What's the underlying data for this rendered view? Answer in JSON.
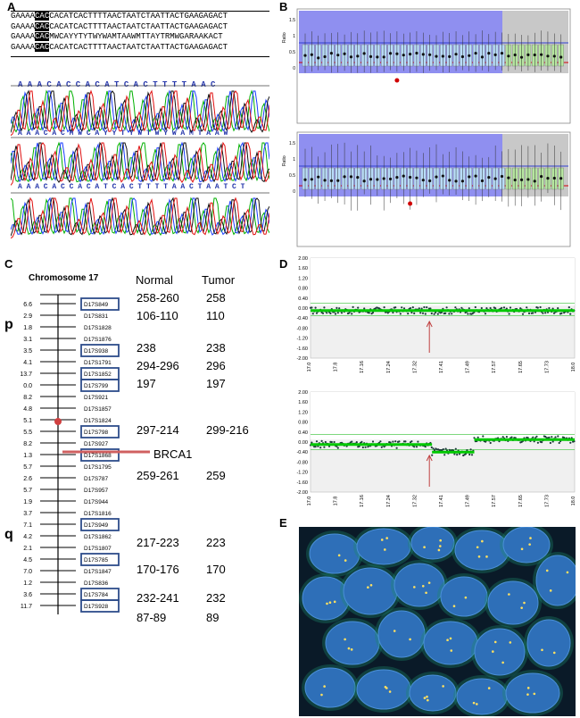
{
  "panels": {
    "A": {
      "label": "A",
      "sequence_lines": [
        {
          "prefix": "GAAAA",
          "box": "CAC",
          "rest": "CACATCACTTTTAACTAATCTAATTACTGAAGAGACT"
        },
        {
          "prefix": "GAAAA",
          "box": "CAC",
          "rest": "CACATCACTTTTAACTAATCTAATTACTGAAGAGACT"
        },
        {
          "prefix": "GAAAA",
          "box": "CAC",
          "rest": "MWCAYYTYTWYWAMTAAWMTTAYTRMWGARAAKACT"
        },
        {
          "prefix": "GAAAA",
          "box": "CAC",
          "rest": "CACATCACTTTTAACTAATCTAATTACTGAAGAGACT"
        }
      ],
      "trace1_bases": "A A A C A C C A C A T C A C T T T T A A C",
      "trace2_bases": "A A A C A C M W C A Y Y T Y W T W Y W A M T A A W",
      "trace3_bases": "A A A C A C C A C A T C A C T T T T A A C T A A T C T"
    },
    "B": {
      "label": "B",
      "axis_label": "Ratio",
      "top_ticks": [
        "1.5",
        "1",
        "0.5",
        "0"
      ],
      "bottom_ticks": [
        "1.5",
        "1",
        "0.5",
        "0"
      ]
    },
    "C": {
      "label": "C",
      "chromosome_title": "Chromosome 17",
      "col_normal": "Normal",
      "col_tumor": "Tumor",
      "arm_p": "p",
      "arm_q": "q",
      "gene_label": "BRCA1",
      "distances": [
        "6.6",
        "2.9",
        "1.8",
        "3.1",
        "3.5",
        "4.1",
        "13.7",
        "0.0",
        "8.2",
        "4.8",
        "5.1",
        "5.5",
        "8.2",
        "1.3",
        "5.7",
        "2.6",
        "5.7",
        "1.9",
        "3.7",
        "7.1",
        "4.2",
        "2.1",
        "4.5",
        "7.0",
        "1.2",
        "3.6",
        "11.7"
      ],
      "markers": [
        "D17S849",
        "D17S831",
        "D17S1828",
        "D17S1876",
        "D17S938",
        "D17S1791",
        "D17S1852",
        "D17S799",
        "D17S921",
        "D17S1857",
        "D17S1824",
        "D17S798",
        "D17S927",
        "D17S1868",
        "D17S1795",
        "D17S787",
        "D17S957",
        "D17S944",
        "D17S1816",
        "D17S949",
        "D17S1862",
        "D17S1807",
        "D17S785",
        "D17S1847",
        "D17S836",
        "D17S784",
        "D17S928"
      ],
      "rows": [
        {
          "normal": "258-260",
          "tumor": "258"
        },
        {
          "normal": "106-110",
          "tumor": "110"
        },
        {
          "normal": "238",
          "tumor": "238"
        },
        {
          "normal": "294-296",
          "tumor": "296"
        },
        {
          "normal": "197",
          "tumor": "197"
        },
        {
          "normal": "297-214",
          "tumor": "299-216"
        },
        {
          "normal": "259-261",
          "tumor": "259"
        },
        {
          "normal": "217-223",
          "tumor": "223"
        },
        {
          "normal": "170-176",
          "tumor": "170"
        },
        {
          "normal": "232-241",
          "tumor": "232"
        },
        {
          "normal": "87-89",
          "tumor": "89"
        }
      ]
    },
    "D": {
      "label": "D",
      "y_ticks": [
        "2.00",
        "1.60",
        "1.20",
        "0.80",
        "0.40",
        "0.00",
        "-0.40",
        "-0.80",
        "-1.20",
        "-1.60",
        "-2.00"
      ],
      "x_ticks": [
        "17.0",
        "17.8",
        "17.16",
        "17.24",
        "17.32",
        "17.41",
        "17.49",
        "17.57",
        "17.65",
        "17.73",
        "18.0"
      ]
    },
    "E": {
      "label": "E"
    }
  },
  "colors": {
    "array_blue": "#8f8ff0",
    "array_gray": "#c8c8c8",
    "normal_line": "#00c800",
    "threshold_red": "#d00000",
    "marker_box": "#2e4d8a",
    "fish_bg": "#0a1a28",
    "fish_nucleus": "#2e6fb8"
  },
  "chart_data": [
    {
      "type": "scatter",
      "panel": "D-top",
      "x_range": [
        17.0,
        18.0
      ],
      "ylim": [
        -2.0,
        2.0
      ],
      "series": [
        {
          "name": "",
          "segments": [
            {
              "x_start": 17.0,
              "x_end": 18.0,
              "y": -0.1
            }
          ]
        }
      ],
      "reference_lines": [
        0.2,
        -0.3
      ]
    },
    {
      "type": "scatter",
      "panel": "D-bottom",
      "x_range": [
        17.0,
        18.0
      ],
      "ylim": [
        -2.0,
        2.0
      ],
      "series": [
        {
          "name": "",
          "segments": [
            {
              "x_start": 17.0,
              "x_end": 17.46,
              "y": -0.1
            },
            {
              "x_start": 17.46,
              "x_end": 17.62,
              "y": -0.4
            },
            {
              "x_start": 17.62,
              "x_end": 18.0,
              "y": 0.1
            }
          ]
        }
      ],
      "reference_lines": [
        0.3,
        -0.3
      ]
    }
  ]
}
